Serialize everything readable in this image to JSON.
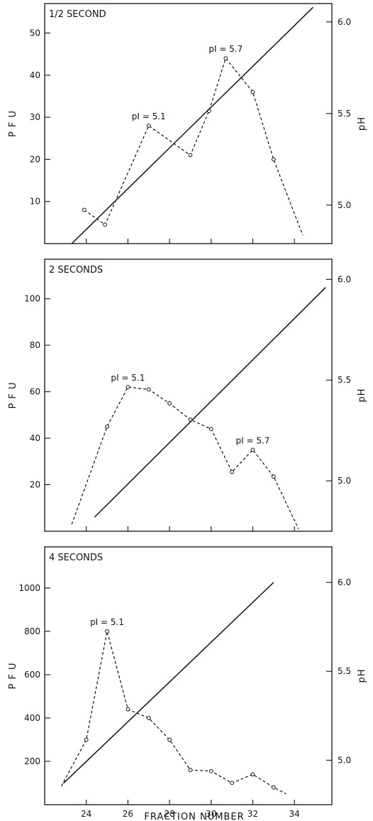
{
  "x_axis_label": "FRACTION NUMBER",
  "chart_data": [
    {
      "type": "line",
      "title": "1/2 SECOND",
      "xlabel": "FRACTION NUMBER",
      "ylabel": "P F U",
      "ylabel_right": "pH",
      "xlim": [
        22,
        35.8
      ],
      "ylim": [
        0,
        57
      ],
      "ylim_right": [
        4.79,
        6.1
      ],
      "yticks": [
        10,
        20,
        30,
        40,
        50
      ],
      "ytick_labels": [
        "10",
        "20",
        "30",
        "40",
        "50"
      ],
      "yticks_right": [
        5.0,
        5.5,
        6.0
      ],
      "ytick_labels_right": [
        "5.0",
        "5.5",
        "6.0"
      ],
      "series": [
        {
          "axis": "left",
          "style": "dashed-markers",
          "x": [
            23.9,
            24.9,
            27.0,
            29.0,
            29.9,
            30.7,
            32.0,
            33.0,
            34.4
          ],
          "y": [
            8,
            4.5,
            28,
            21,
            31.5,
            44,
            36,
            20,
            2
          ]
        },
        {
          "axis": "right",
          "style": "solid",
          "x": [
            23.3,
            34.9
          ],
          "y": [
            4.79,
            6.08
          ]
        }
      ],
      "annotations": [
        {
          "text": "pI = 5.1",
          "x": 27.0,
          "y": 28
        },
        {
          "text": "pI = 5.7",
          "x": 30.7,
          "y": 44
        }
      ]
    },
    {
      "type": "line",
      "title": "2 SECONDS",
      "xlabel": "FRACTION NUMBER",
      "ylabel": "P F U",
      "ylabel_right": "pH",
      "xlim": [
        22,
        35.8
      ],
      "ylim": [
        0,
        117
      ],
      "ylim_right": [
        4.75,
        6.1
      ],
      "yticks": [
        20,
        40,
        60,
        80,
        100
      ],
      "ytick_labels": [
        "20",
        "40",
        "60",
        "80",
        "100"
      ],
      "yticks_right": [
        5.0,
        5.5,
        6.0
      ],
      "ytick_labels_right": [
        "5.0",
        "5.5",
        "6.0"
      ],
      "series": [
        {
          "axis": "left",
          "style": "dashed-markers",
          "x": [
            23.3,
            25.0,
            26.0,
            27.0,
            28.0,
            29.0,
            30.0,
            31.0,
            32.0,
            33.0,
            34.2
          ],
          "y": [
            3,
            45,
            62,
            61,
            55,
            48,
            44,
            25.5,
            35,
            23.5,
            1
          ]
        },
        {
          "axis": "right",
          "style": "solid",
          "x": [
            24.4,
            35.5
          ],
          "y": [
            4.82,
            5.96
          ]
        }
      ],
      "annotations": [
        {
          "text": "pI = 5.1",
          "x": 26.0,
          "y": 62
        },
        {
          "text": "pI = 5.7",
          "x": 32.0,
          "y": 35
        }
      ]
    },
    {
      "type": "line",
      "title": "4 SECONDS",
      "xlabel": "FRACTION NUMBER",
      "ylabel": "P F U",
      "ylabel_right": "pH",
      "xlim": [
        22,
        35.8
      ],
      "ylim": [
        0,
        1190
      ],
      "ylim_right": [
        4.75,
        6.2
      ],
      "xticks": [
        24,
        26,
        28,
        30,
        32,
        34
      ],
      "xtick_labels": [
        "24",
        "26",
        "28",
        "30",
        "32",
        "34"
      ],
      "yticks": [
        200,
        400,
        600,
        800,
        1000
      ],
      "ytick_labels": [
        "200",
        "400",
        "600",
        "800",
        "1000"
      ],
      "yticks_right": [
        5.0,
        5.5,
        6.0
      ],
      "ytick_labels_right": [
        "5.0",
        "5.5",
        "6.0"
      ],
      "series": [
        {
          "axis": "left",
          "style": "dashed-markers",
          "x": [
            22.8,
            24.0,
            25.0,
            26.0,
            27.0,
            28.0,
            29.0,
            30.0,
            31.0,
            32.0,
            33.0,
            33.6
          ],
          "y": [
            85,
            300,
            800,
            440,
            400,
            300,
            160,
            155,
            100,
            140,
            80,
            50
          ]
        },
        {
          "axis": "right",
          "style": "solid",
          "x": [
            22.9,
            28.0,
            33.0
          ],
          "y": [
            4.87,
            5.44,
            6.0
          ]
        }
      ],
      "annotations": [
        {
          "text": "pI = 5.1",
          "x": 25.0,
          "y": 800
        }
      ]
    }
  ]
}
